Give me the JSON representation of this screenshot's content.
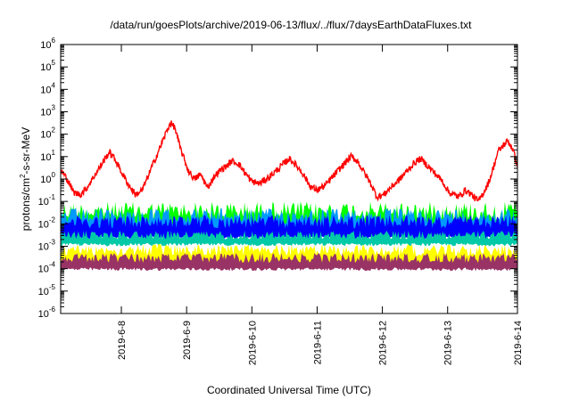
{
  "chart_data": {
    "type": "line",
    "title": "/data/run/goesPlots/archive/2019-06-13/flux/../flux/7daysEarthDataFluxes.txt",
    "xlabel": "Coordinated Universal Time (UTC)",
    "ylabel_base": "protons/cm",
    "ylabel_sup": "2",
    "ylabel_rest": "-s-sr-MeV",
    "yscale": "log",
    "ylim_exp": [
      -6,
      6
    ],
    "ytick_exponents": [
      -6,
      -5,
      -4,
      -3,
      -2,
      -1,
      0,
      1,
      2,
      3,
      4,
      5,
      6
    ],
    "ytick_base": "10",
    "xlim_days": [
      7.0,
      14.0
    ],
    "xticks": [
      {
        "day": 7.93,
        "label": "2019-6-8"
      },
      {
        "day": 8.93,
        "label": "2019-6-9"
      },
      {
        "day": 9.93,
        "label": "2019-6-10"
      },
      {
        "day": 10.93,
        "label": "2019-6-11"
      },
      {
        "day": 11.93,
        "label": "2019-6-12"
      },
      {
        "day": 12.93,
        "label": "2019-6-13"
      },
      {
        "day": 14.0,
        "label": "2019-6-14"
      }
    ],
    "grid": false,
    "legend": "none",
    "series": [
      {
        "color": "#ff0000",
        "kind": "line",
        "noise": 0.15,
        "log10_values": [
          [
            7.0,
            0.4
          ],
          [
            7.1,
            0.0
          ],
          [
            7.2,
            -0.6
          ],
          [
            7.3,
            -0.7
          ],
          [
            7.4,
            -0.4
          ],
          [
            7.55,
            0.3
          ],
          [
            7.7,
            1.0
          ],
          [
            7.75,
            1.2
          ],
          [
            7.85,
            0.8
          ],
          [
            7.95,
            0.2
          ],
          [
            8.05,
            -0.3
          ],
          [
            8.15,
            -0.7
          ],
          [
            8.25,
            -0.5
          ],
          [
            8.35,
            0.2
          ],
          [
            8.45,
            0.9
          ],
          [
            8.55,
            1.6
          ],
          [
            8.62,
            2.1
          ],
          [
            8.68,
            2.5
          ],
          [
            8.75,
            2.3
          ],
          [
            8.82,
            1.5
          ],
          [
            8.88,
            1.0
          ],
          [
            8.95,
            0.4
          ],
          [
            9.05,
            0.0
          ],
          [
            9.15,
            0.2
          ],
          [
            9.25,
            -0.4
          ],
          [
            9.35,
            0.1
          ],
          [
            9.45,
            0.4
          ],
          [
            9.55,
            0.6
          ],
          [
            9.62,
            0.8
          ],
          [
            9.72,
            0.7
          ],
          [
            9.82,
            0.3
          ],
          [
            9.92,
            -0.1
          ],
          [
            10.05,
            -0.2
          ],
          [
            10.2,
            0.1
          ],
          [
            10.35,
            0.5
          ],
          [
            10.5,
            0.9
          ],
          [
            10.55,
            0.8
          ],
          [
            10.7,
            0.3
          ],
          [
            10.82,
            -0.3
          ],
          [
            10.92,
            -0.5
          ],
          [
            11.05,
            -0.3
          ],
          [
            11.2,
            0.2
          ],
          [
            11.35,
            0.7
          ],
          [
            11.45,
            1.0
          ],
          [
            11.55,
            0.8
          ],
          [
            11.65,
            0.3
          ],
          [
            11.75,
            -0.2
          ],
          [
            11.85,
            -0.8
          ],
          [
            11.95,
            -0.7
          ],
          [
            12.05,
            -0.4
          ],
          [
            12.2,
            0.0
          ],
          [
            12.35,
            0.5
          ],
          [
            12.45,
            0.8
          ],
          [
            12.52,
            0.9
          ],
          [
            12.62,
            0.6
          ],
          [
            12.72,
            0.3
          ],
          [
            12.85,
            -0.1
          ],
          [
            12.95,
            -0.6
          ],
          [
            13.1,
            -0.8
          ],
          [
            13.2,
            -0.5
          ],
          [
            13.3,
            -0.7
          ],
          [
            13.4,
            -1.0
          ],
          [
            13.48,
            -0.6
          ],
          [
            13.55,
            -0.2
          ],
          [
            13.62,
            0.4
          ],
          [
            13.7,
            1.2
          ],
          [
            13.78,
            1.5
          ],
          [
            13.85,
            1.7
          ],
          [
            13.92,
            1.4
          ],
          [
            14.0,
            0.6
          ]
        ]
      },
      {
        "color": "#00ff00",
        "kind": "band",
        "log10_low": -2.6,
        "log10_high": -1.0
      },
      {
        "color": "#0099ff",
        "kind": "band",
        "log10_low": -2.6,
        "log10_high": -1.3
      },
      {
        "color": "#0000ff",
        "kind": "band",
        "log10_low": -2.7,
        "log10_high": -1.6
      },
      {
        "color": "#00c9a7",
        "kind": "band",
        "log10_low": -3.0,
        "log10_high": -2.3
      },
      {
        "color": "#ffff00",
        "kind": "band",
        "log10_low": -3.9,
        "log10_high": -2.9
      },
      {
        "color": "#993366",
        "kind": "band",
        "log10_low": -4.1,
        "log10_high": -3.3
      }
    ]
  }
}
